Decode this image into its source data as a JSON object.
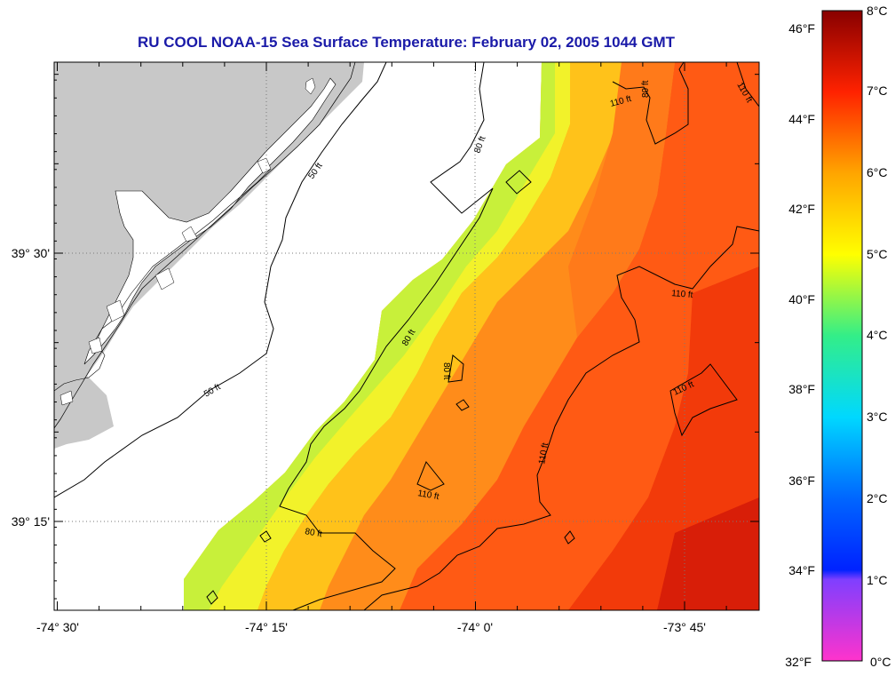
{
  "title": "RU COOL  NOAA-15  Sea Surface Temperature:  February 02, 2005 1044 GMT",
  "axes": {
    "longitude_ticks": [
      "-74° 30'",
      "-74° 15'",
      "-74° 0'",
      "-73° 45'"
    ],
    "latitude_ticks": [
      "39° 30'",
      "39° 15'"
    ]
  },
  "colorbar": {
    "fahrenheit_labels": [
      "46°F",
      "44°F",
      "42°F",
      "40°F",
      "38°F",
      "36°F",
      "34°F",
      "32°F"
    ],
    "celsius_labels": [
      "8°C",
      "7°C",
      "6°C",
      "5°C",
      "4°C",
      "3°C",
      "2°C",
      "1°C",
      "0°C"
    ],
    "range_celsius": [
      0,
      8
    ],
    "range_fahrenheit": [
      32,
      46.4
    ]
  },
  "contours": {
    "isobath_labels": [
      "50 ft",
      "50 ft",
      "80 ft",
      "80 ft",
      "80 ft",
      "80 ft",
      "80 ft",
      "110 ft",
      "110 ft",
      "110 ft",
      "110 ft",
      "110 ft",
      "110 ft"
    ]
  },
  "colors": {
    "title": "#1a1aa8",
    "land": "#c8c8c8",
    "contour": "#000000",
    "gridline": "#7a7a7a"
  }
}
